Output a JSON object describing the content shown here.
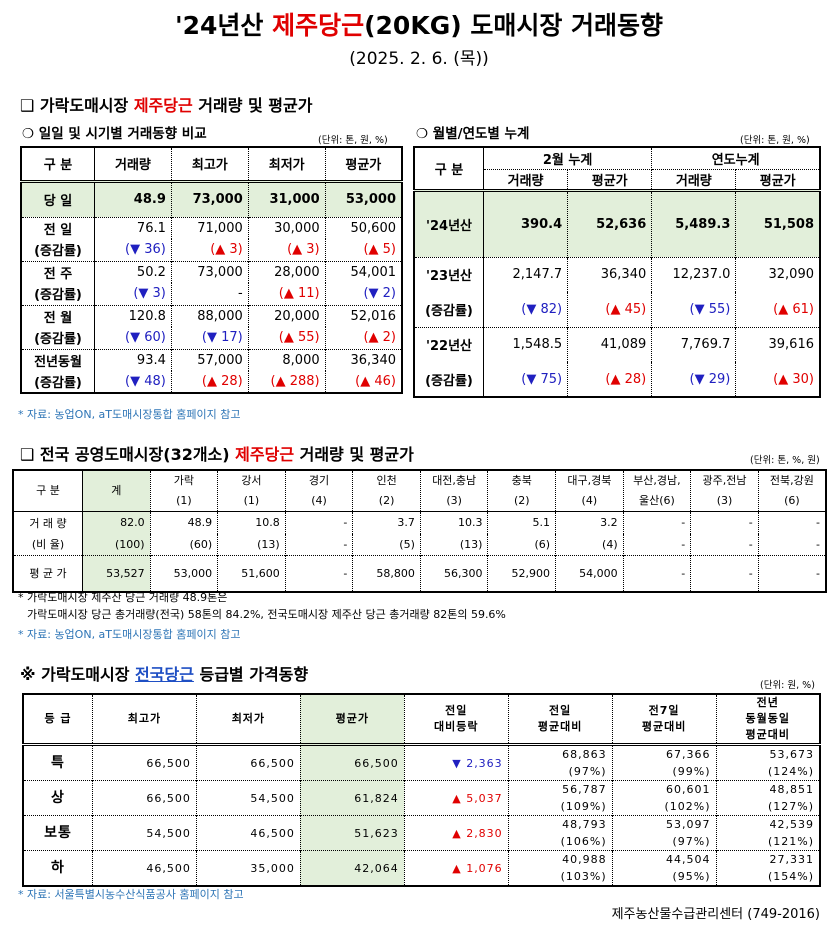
{
  "title": {
    "prefix": "'24년산 ",
    "highlight": "제주당근",
    "suffix": "(20KG) 도매시장 거래동향",
    "date": "(2025. 2. 6. (목))"
  },
  "section1": {
    "bullet": "❑",
    "prefix": "가락도매시장 ",
    "highlight": "제주당근",
    "suffix": " 거래량 및 평균가"
  },
  "daily": {
    "heading": "❍ 일일 및 시기별 거래동향 비교",
    "unit": "(단위: 톤, 원, %)",
    "headers": [
      "구 분",
      "거래량",
      "최고가",
      "최저가",
      "평균가"
    ],
    "today": {
      "label": "당 일",
      "values": [
        "48.9",
        "73,000",
        "31,000",
        "53,000"
      ]
    },
    "rows": [
      {
        "label": "전 일",
        "values": [
          "76.1",
          "71,000",
          "30,000",
          "50,600"
        ],
        "rate_label": "(증감률)",
        "rates": [
          {
            "dir": "down",
            "text": "(▼ 36)"
          },
          {
            "dir": "up",
            "text": "(▲ 3)"
          },
          {
            "dir": "up",
            "text": "(▲ 3)"
          },
          {
            "dir": "up",
            "text": "(▲ 5)"
          }
        ]
      },
      {
        "label": "전 주",
        "values": [
          "50.2",
          "73,000",
          "28,000",
          "54,001"
        ],
        "rate_label": "(증감률)",
        "rates": [
          {
            "dir": "down",
            "text": "(▼ 3)"
          },
          {
            "dir": "none",
            "text": "-"
          },
          {
            "dir": "up",
            "text": "(▲ 11)"
          },
          {
            "dir": "down",
            "text": "(▼ 2)"
          }
        ]
      },
      {
        "label": "전 월",
        "values": [
          "120.8",
          "88,000",
          "20,000",
          "52,016"
        ],
        "rate_label": "(증감률)",
        "rates": [
          {
            "dir": "down",
            "text": "(▼ 60)"
          },
          {
            "dir": "down",
            "text": "(▼ 17)"
          },
          {
            "dir": "up",
            "text": "(▲ 55)"
          },
          {
            "dir": "up",
            "text": "(▲ 2)"
          }
        ]
      },
      {
        "label": "전년동월",
        "values": [
          "93.4",
          "57,000",
          "8,000",
          "36,340"
        ],
        "rate_label": "(증감률)",
        "rates": [
          {
            "dir": "down",
            "text": "(▼ 48)"
          },
          {
            "dir": "up",
            "text": "(▲ 28)"
          },
          {
            "dir": "up",
            "text": "(▲ 288)"
          },
          {
            "dir": "up",
            "text": "(▲ 46)"
          }
        ]
      }
    ]
  },
  "cumulative": {
    "heading": "❍ 월별/연도별 누계",
    "unit": "(단위: 톤, 원, %)",
    "corner": "구 분",
    "groups": [
      "2월 누계",
      "연도누계"
    ],
    "subheaders": [
      "거래량",
      "평균가",
      "거래량",
      "평균가"
    ],
    "current": {
      "label": "'24년산",
      "values": [
        "390.4",
        "52,636",
        "5,489.3",
        "51,508"
      ]
    },
    "rows": [
      {
        "label": "'23년산",
        "values": [
          "2,147.7",
          "36,340",
          "12,237.0",
          "32,090"
        ],
        "rate_label": "(증감률)",
        "rates": [
          {
            "dir": "down",
            "text": "(▼ 82)"
          },
          {
            "dir": "up",
            "text": "(▲ 45)"
          },
          {
            "dir": "down",
            "text": "(▼ 55)"
          },
          {
            "dir": "up",
            "text": "(▲ 61)"
          }
        ]
      },
      {
        "label": "'22년산",
        "values": [
          "1,548.5",
          "41,089",
          "7,769.7",
          "39,616"
        ],
        "rate_label": "(증감률)",
        "rates": [
          {
            "dir": "down",
            "text": "(▼ 75)"
          },
          {
            "dir": "up",
            "text": "(▲ 28)"
          },
          {
            "dir": "down",
            "text": "(▼ 29)"
          },
          {
            "dir": "up",
            "text": "(▲ 30)"
          }
        ]
      }
    ]
  },
  "source1": "* 자료: 농업ON, aT도매시장통합 홈페이지 참고",
  "section2": {
    "bullet": "❑",
    "prefix": "전국 공영도매시장(32개소) ",
    "highlight": "제주당근",
    "suffix": " 거래량 및 평균가",
    "unit": "(단위: 톤, %, 원)",
    "corner": "구 분",
    "headers": [
      [
        "계",
        ""
      ],
      [
        "가락",
        "(1)"
      ],
      [
        "강서",
        "(1)"
      ],
      [
        "경기",
        "(4)"
      ],
      [
        "인천",
        "(2)"
      ],
      [
        "대전,충남",
        "(3)"
      ],
      [
        "충북",
        "(2)"
      ],
      [
        "대구,경북",
        "(4)"
      ],
      [
        "부산,경남,",
        "울산(6)"
      ],
      [
        "광주,전남",
        "(3)"
      ],
      [
        "전북,강원",
        "(6)"
      ]
    ],
    "volume_label": "거 래 량",
    "volume": [
      "82.0",
      "48.9",
      "10.8",
      "-",
      "3.7",
      "10.3",
      "5.1",
      "3.2",
      "-",
      "-",
      "-"
    ],
    "ratio_label": "(비 율)",
    "ratio": [
      "(100)",
      "(60)",
      "(13)",
      "-",
      "(5)",
      "(13)",
      "(6)",
      "(4)",
      "-",
      "-",
      "-"
    ],
    "price_label": "평 균 가",
    "price": [
      "53,527",
      "53,000",
      "51,600",
      "-",
      "58,800",
      "56,300",
      "52,900",
      "54,000",
      "-",
      "-",
      "-"
    ],
    "notes": [
      "* 가락도매시장 제주산 당근 거래량 48.9톤은",
      "가락도매시장 당근 총거래량(전국) 58톤의 84.2%, 전국도매시장 제주산 당근 총거래량 82톤의 59.6%"
    ],
    "source": "* 자료: 농업ON, aT도매시장통합 홈페이지 참고"
  },
  "section3": {
    "bullet": "※",
    "prefix": "가락도매시장 ",
    "highlight": "전국당근",
    "suffix": " 등급별 가격동향",
    "unit": "(단위: 원, %)",
    "headers": [
      [
        "등 급"
      ],
      [
        "최고가"
      ],
      [
        "최저가"
      ],
      [
        "평균가"
      ],
      [
        "전일",
        "대비등락"
      ],
      [
        "전일",
        "평균대비"
      ],
      [
        "전7일",
        "평균대비"
      ],
      [
        "전년",
        "동월동일",
        "평균대비"
      ]
    ],
    "rows": [
      {
        "grade": "특",
        "max": "66,500",
        "min": "66,500",
        "avg": "66,500",
        "change": {
          "dir": "down",
          "text": "▼ 2,363"
        },
        "prev_day": [
          "68,863",
          "(97%)"
        ],
        "prev_7": [
          "67,366",
          "(99%)"
        ],
        "prev_year": [
          "53,673",
          "(124%)"
        ]
      },
      {
        "grade": "상",
        "max": "66,500",
        "min": "54,500",
        "avg": "61,824",
        "change": {
          "dir": "up",
          "text": "▲ 5,037"
        },
        "prev_day": [
          "56,787",
          "(109%)"
        ],
        "prev_7": [
          "60,601",
          "(102%)"
        ],
        "prev_year": [
          "48,851",
          "(127%)"
        ]
      },
      {
        "grade": "보통",
        "max": "54,500",
        "min": "46,500",
        "avg": "51,623",
        "change": {
          "dir": "up",
          "text": "▲ 2,830"
        },
        "prev_day": [
          "48,793",
          "(106%)"
        ],
        "prev_7": [
          "53,097",
          "(97%)"
        ],
        "prev_year": [
          "42,539",
          "(121%)"
        ]
      },
      {
        "grade": "하",
        "max": "46,500",
        "min": "35,000",
        "avg": "42,064",
        "change": {
          "dir": "up",
          "text": "▲ 1,076"
        },
        "prev_day": [
          "40,988",
          "(103%)"
        ],
        "prev_7": [
          "44,504",
          "(95%)"
        ],
        "prev_year": [
          "27,331",
          "(154%)"
        ]
      }
    ],
    "source": "* 자료: 서울특별시농수산식품공사 홈페이지 참고"
  },
  "footer": "제주농산물수급관리센터 (749-2016)",
  "colors": {
    "highlight_red": "#e00000",
    "highlight_blue": "#1f4fc4",
    "increase": "#e00000",
    "decrease": "#2020c0",
    "total_fill": "#e2efda",
    "source_text": "#2e75b6"
  }
}
